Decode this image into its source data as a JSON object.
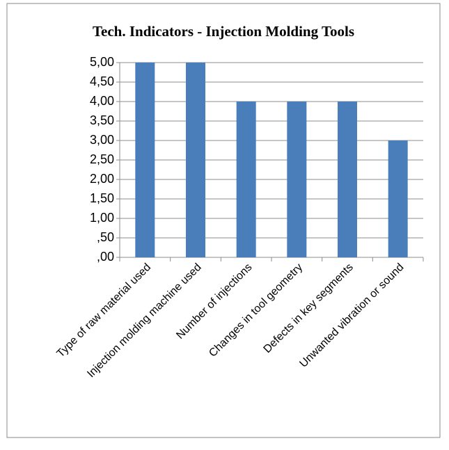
{
  "chart_data": {
    "type": "bar",
    "title": "Tech. Indicators - Injection Molding Tools",
    "categories": [
      "Type of raw material used",
      "Injection molding machine used",
      "Number of injections",
      "Changes in tool geometry",
      "Defects in key segments",
      "Unwanted vibration or sound"
    ],
    "values": [
      5,
      5,
      4,
      4,
      4,
      3
    ],
    "color": "#4a7ebb",
    "ylim": [
      0,
      5
    ],
    "yticks": [
      {
        "value": 0,
        "label": ",00"
      },
      {
        "value": 0.5,
        "label": ",50"
      },
      {
        "value": 1,
        "label": "1,00"
      },
      {
        "value": 1.5,
        "label": "1,50"
      },
      {
        "value": 2,
        "label": "2,00"
      },
      {
        "value": 2.5,
        "label": "2,50"
      },
      {
        "value": 3,
        "label": "3,00"
      },
      {
        "value": 3.5,
        "label": "3,50"
      },
      {
        "value": 4,
        "label": "4,00"
      },
      {
        "value": 4.5,
        "label": "4,50"
      },
      {
        "value": 5,
        "label": "5,00"
      }
    ],
    "grid": true
  }
}
